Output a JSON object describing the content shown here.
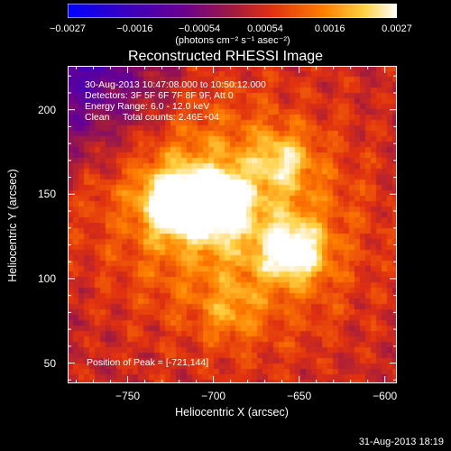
{
  "chart_data": {
    "type": "heatmap",
    "title": "Reconstructed RHESSI Image",
    "info_lines": [
      "30-Aug-2013 10:47:08.000 to 10:50:12.000",
      "Detectors: 3F 5F 6F 7F 8F 9F, Att 0",
      "Energy Range: 6.0 - 12.0 keV",
      "Clean     Total counts: 2.46E+04"
    ],
    "peak_label": "Position of Peak = [-721,144]",
    "xlabel": "Heliocentric X (arcsec)",
    "ylabel": "Heliocentric Y (arcsec)",
    "xlim": [
      -785,
      -593
    ],
    "ylim": [
      38,
      226
    ],
    "x_ticks": [
      -750,
      -700,
      -650,
      -600
    ],
    "x_tick_labels": [
      "−750",
      "−700",
      "−650",
      "−600"
    ],
    "y_ticks": [
      50,
      100,
      150,
      200
    ],
    "y_tick_labels": [
      "50",
      "100",
      "150",
      "200"
    ],
    "colorbar": {
      "min": -0.0027,
      "max": 0.0027,
      "tick_values": [
        -0.0027,
        -0.0016,
        -0.00054,
        0.00054,
        0.0016,
        0.0027
      ],
      "tick_labels": [
        "−0.0027",
        "−0.0016",
        "−0.00054",
        "0.00054",
        "0.0016",
        "0.0027"
      ],
      "units_label": "(photons cm⁻² s⁻¹ asec⁻²)"
    },
    "sources": [
      {
        "x": -722,
        "y": 145,
        "value": 0.0027
      },
      {
        "x": -698,
        "y": 145,
        "value": 0.0025
      },
      {
        "x": -653,
        "y": 116,
        "value": 0.0022
      },
      {
        "x": -660,
        "y": 170,
        "value": 0.0012
      },
      {
        "x": -690,
        "y": 80,
        "value": 0.0008
      }
    ],
    "grid": false
  },
  "footer": {
    "timestamp": "31-Aug-2013 18:19"
  }
}
